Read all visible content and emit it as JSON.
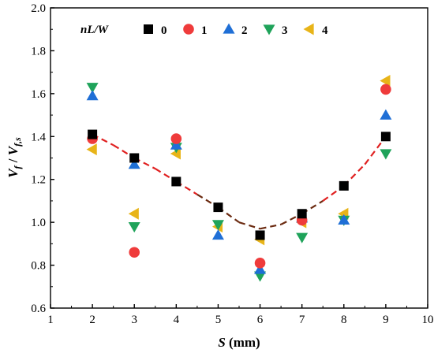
{
  "chart_data": {
    "type": "scatter",
    "xlabel": {
      "symbol": "S",
      "unit": " (mm)"
    },
    "ylabel": {
      "num": "V",
      "num_sub": "f",
      "sep": " / ",
      "den": "V",
      "den_sub": "f,s"
    },
    "xlim": [
      1,
      10
    ],
    "ylim": [
      0.6,
      2.0
    ],
    "xticks": [
      1,
      2,
      3,
      4,
      5,
      6,
      7,
      8,
      9,
      10
    ],
    "xtick_labels": [
      "1",
      "2",
      "3",
      "4",
      "5",
      "6",
      "7",
      "8",
      "9",
      "10"
    ],
    "yticks": [
      0.6,
      0.8,
      1.0,
      1.2,
      1.4,
      1.6,
      1.8,
      2.0
    ],
    "ytick_labels": [
      "0.6",
      "0.8",
      "1.0",
      "1.2",
      "1.4",
      "1.6",
      "1.8",
      "2.0"
    ],
    "legend": {
      "title": "nL/W",
      "placement": "top-left"
    },
    "series": [
      {
        "name": "0",
        "marker": "square",
        "color": "#000000",
        "x": [
          2,
          3,
          4,
          5,
          6,
          7,
          8,
          9
        ],
        "y": [
          1.41,
          1.3,
          1.19,
          1.07,
          0.94,
          1.04,
          1.17,
          1.4
        ]
      },
      {
        "name": "1",
        "marker": "circle",
        "color": "#ef3b3b",
        "x": [
          2,
          3,
          4,
          6,
          7,
          9
        ],
        "y": [
          1.39,
          0.86,
          1.39,
          0.81,
          1.01,
          1.62
        ]
      },
      {
        "name": "2",
        "marker": "triangle-up",
        "color": "#1f6fd6",
        "x": [
          2,
          3,
          4,
          5,
          6,
          7,
          8,
          9
        ],
        "y": [
          1.59,
          1.27,
          1.36,
          0.94,
          0.78,
          1.02,
          1.01,
          1.5
        ]
      },
      {
        "name": "3",
        "marker": "triangle-down",
        "color": "#1fa35a",
        "x": [
          2,
          3,
          4,
          5,
          6,
          7,
          8,
          9
        ],
        "y": [
          1.63,
          0.98,
          1.35,
          0.99,
          0.75,
          0.93,
          1.01,
          1.32
        ]
      },
      {
        "name": "4",
        "marker": "triangle-left",
        "color": "#e8b418",
        "x": [
          2,
          3,
          4,
          5,
          6,
          7,
          8,
          9
        ],
        "y": [
          1.34,
          1.04,
          1.32,
          0.98,
          0.92,
          1.0,
          1.04,
          1.66
        ]
      }
    ],
    "trend_line": {
      "color": "#e02020",
      "dark_segment_color": "#6b2a10",
      "dark_segment_xrange": [
        4.5,
        7.5
      ],
      "x": [
        2.0,
        2.5,
        3.0,
        3.5,
        4.0,
        4.5,
        5.0,
        5.5,
        6.0,
        6.5,
        7.0,
        7.5,
        8.0,
        8.5,
        9.0
      ],
      "y": [
        1.41,
        1.36,
        1.3,
        1.25,
        1.19,
        1.13,
        1.07,
        1.0,
        0.97,
        0.99,
        1.04,
        1.1,
        1.17,
        1.27,
        1.4
      ]
    }
  }
}
